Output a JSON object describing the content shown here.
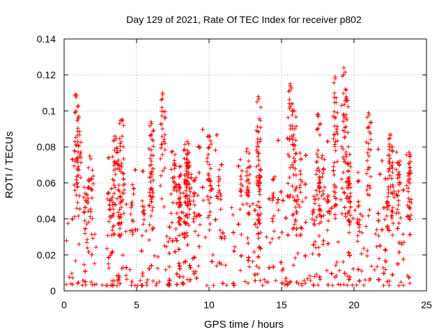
{
  "chart_data": {
    "type": "scatter",
    "title": "Day 129 of 2021, Rate Of TEC Index for receiver p802",
    "xlabel": "GPS time / hours",
    "ylabel": "ROTI / TECUs",
    "xlim": [
      0,
      25
    ],
    "ylim": [
      0,
      0.14
    ],
    "xticks": [
      0,
      5,
      10,
      15,
      20,
      25
    ],
    "yticks": [
      0,
      0.02,
      0.04,
      0.06,
      0.08,
      0.1,
      0.12,
      0.14
    ],
    "xtick_labels": [
      "0",
      "5",
      "10",
      "15",
      "20",
      "25"
    ],
    "ytick_labels": [
      "0",
      "0.02",
      "0.04",
      "0.06",
      "0.08",
      "0.1",
      "0.12",
      "0.14"
    ],
    "grid": true,
    "legend": "none",
    "marker": "+",
    "color": "#ff0000",
    "series": [
      {
        "values_note_only_in_script": false,
        "x_range": [
          0,
          24
        ],
        "peaks": [
          {
            "x": 0.8,
            "y": 0.109
          },
          {
            "x": 1.0,
            "y": 0.097
          },
          {
            "x": 3.5,
            "y": 0.086
          },
          {
            "x": 4.0,
            "y": 0.095
          },
          {
            "x": 6.0,
            "y": 0.094
          },
          {
            "x": 6.8,
            "y": 0.11
          },
          {
            "x": 8.5,
            "y": 0.083
          },
          {
            "x": 10.0,
            "y": 0.086
          },
          {
            "x": 13.4,
            "y": 0.108
          },
          {
            "x": 15.6,
            "y": 0.115
          },
          {
            "x": 15.9,
            "y": 0.1
          },
          {
            "x": 17.5,
            "y": 0.098
          },
          {
            "x": 18.7,
            "y": 0.119
          },
          {
            "x": 19.3,
            "y": 0.124
          },
          {
            "x": 19.5,
            "y": 0.106
          },
          {
            "x": 21.0,
            "y": 0.099
          },
          {
            "x": 22.5,
            "y": 0.087
          },
          {
            "x": 23.8,
            "y": 0.077
          }
        ]
      }
    ]
  }
}
